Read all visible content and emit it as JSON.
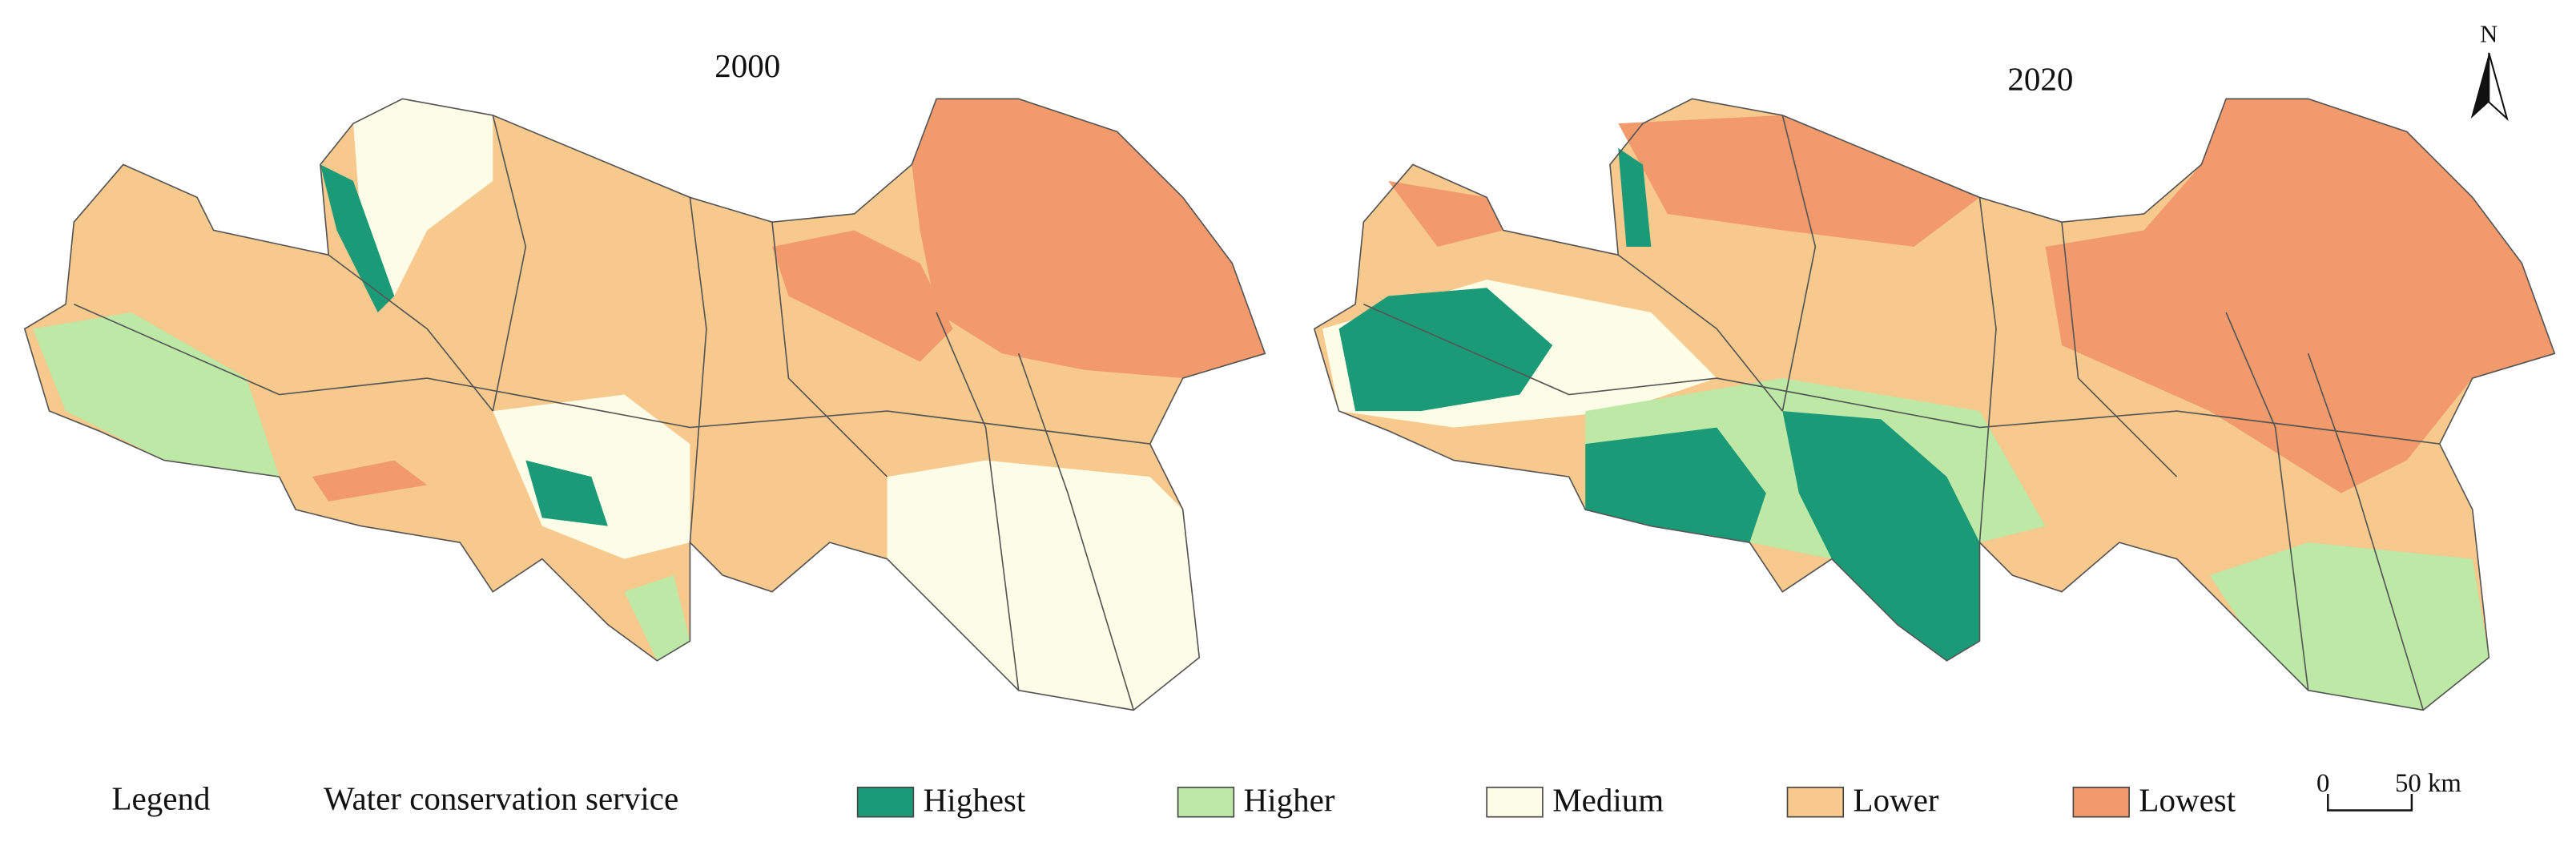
{
  "maps": [
    {
      "title": "2000"
    },
    {
      "title": "2020"
    }
  ],
  "north_label": "N",
  "legend": {
    "label": "Legend",
    "title": "Water conservation service",
    "classes": [
      {
        "name": "Highest",
        "color": "#1b9a78"
      },
      {
        "name": "Higher",
        "color": "#bde8a6"
      },
      {
        "name": "Medium",
        "color": "#fdfce6"
      },
      {
        "name": "Lower",
        "color": "#f7c98c"
      },
      {
        "name": "Lowest",
        "color": "#f29a6c"
      }
    ]
  },
  "scale_bar": {
    "start": "0",
    "end": "50 km"
  }
}
